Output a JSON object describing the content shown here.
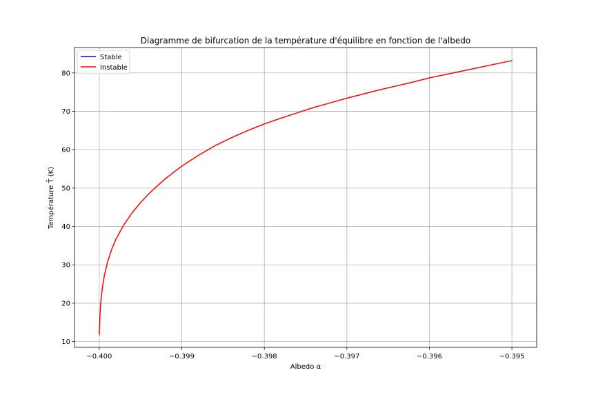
{
  "chart_data": {
    "type": "line",
    "title": "Diagramme de bifurcation de la température d'équilibre en fonction de l'albedo",
    "xlabel": "Albedo α",
    "ylabel": "Température T̄ (K)",
    "xlim": [
      -0.4003,
      -0.3947
    ],
    "ylim": [
      8.5,
      86.6
    ],
    "grid": true,
    "legend_position": "top-left",
    "x_ticks": [
      -0.4,
      -0.399,
      -0.398,
      -0.397,
      -0.396,
      -0.395
    ],
    "x_tick_labels": [
      "−0.400",
      "−0.399",
      "−0.398",
      "−0.397",
      "−0.396",
      "−0.395"
    ],
    "y_ticks": [
      10,
      20,
      30,
      40,
      50,
      60,
      70,
      80
    ],
    "y_tick_labels": [
      "10",
      "20",
      "30",
      "40",
      "50",
      "60",
      "70",
      "80"
    ],
    "series": [
      {
        "name": "Stable",
        "color": "#0000ff",
        "x": [],
        "y": []
      },
      {
        "name": "Instable",
        "color": "#ff0000",
        "x": [
          -0.4,
          -0.39999,
          -0.39998,
          -0.39996,
          -0.39994,
          -0.3999,
          -0.39985,
          -0.3998,
          -0.3997,
          -0.3996,
          -0.3995,
          -0.3994,
          -0.3993,
          -0.3992,
          -0.3991,
          -0.399,
          -0.3988,
          -0.3986,
          -0.3984,
          -0.3982,
          -0.398,
          -0.3978,
          -0.3976,
          -0.3974,
          -0.3972,
          -0.397,
          -0.3968,
          -0.3966,
          -0.3964,
          -0.3962,
          -0.396,
          -0.3958,
          -0.3956,
          -0.3954,
          -0.3952,
          -0.395
        ],
        "y": [
          11.8,
          17.5,
          20.6,
          24.4,
          27.0,
          30.7,
          34.0,
          36.6,
          40.5,
          43.6,
          46.2,
          48.5,
          50.5,
          52.4,
          54.1,
          55.7,
          58.5,
          61.0,
          63.1,
          65.0,
          66.7,
          68.2,
          69.6,
          71.0,
          72.2,
          73.4,
          74.5,
          75.6,
          76.6,
          77.6,
          78.7,
          79.6,
          80.5,
          81.4,
          82.3,
          83.2
        ]
      }
    ]
  }
}
